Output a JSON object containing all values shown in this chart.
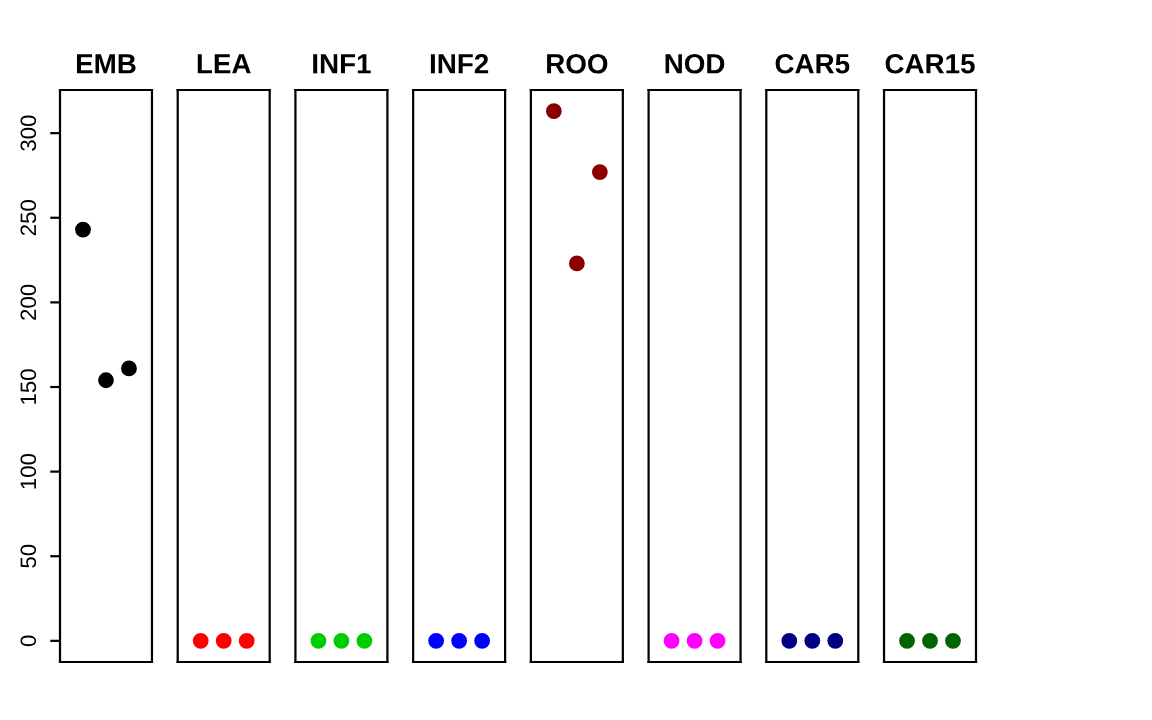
{
  "chart_data": {
    "type": "scatter",
    "categories": [
      "EMB",
      "LEA",
      "INF1",
      "INF2",
      "ROO",
      "NOD",
      "CAR5",
      "CAR15"
    ],
    "series": [
      {
        "colors": [
          "#000000",
          "#ff0000",
          "#00cd00",
          "#0000ff",
          "#8b0000",
          "#ff00ff",
          "#000080",
          "#006400"
        ],
        "values": [
          243,
          0,
          0,
          0,
          313,
          0,
          0,
          0
        ]
      },
      {
        "colors": [
          "#000000",
          "#ff0000",
          "#00cd00",
          "#0000ff",
          "#8b0000",
          "#ff00ff",
          "#000080",
          "#006400"
        ],
        "values": [
          154,
          0,
          0,
          0,
          223,
          0,
          0,
          0
        ]
      },
      {
        "colors": [
          "#000000",
          "#ff0000",
          "#00cd00",
          "#0000ff",
          "#8b0000",
          "#ff00ff",
          "#000080",
          "#006400"
        ],
        "values": [
          161,
          0,
          0,
          0,
          277,
          0,
          0,
          0
        ]
      }
    ],
    "ylim": [
      -12.5,
      325.5
    ],
    "yticks": [
      0,
      50,
      100,
      150,
      200,
      250,
      300
    ],
    "marker": "circle"
  }
}
